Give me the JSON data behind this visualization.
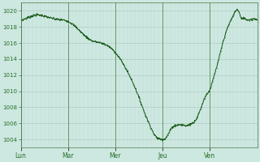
{
  "background_color": "#cce8e0",
  "plot_bg_color": "#cce8e0",
  "line_color": "#1a5c1a",
  "grid_color_h": "#b0ccc4",
  "grid_color_v": "#c0d8d0",
  "tick_label_color": "#2a6e2a",
  "ylim": [
    1003.0,
    1021.0
  ],
  "yticks": [
    1004,
    1006,
    1008,
    1010,
    1012,
    1014,
    1016,
    1018,
    1020
  ],
  "day_labels": [
    "Lun",
    "Mar",
    "Mer",
    "Jeu",
    "Ven"
  ],
  "day_positions": [
    0,
    24,
    48,
    72,
    96
  ],
  "xlim": [
    0,
    120
  ],
  "figsize": [
    3.2,
    2.0
  ],
  "dpi": 100,
  "control_points": [
    [
      0,
      1018.8
    ],
    [
      2,
      1019.0
    ],
    [
      5,
      1019.3
    ],
    [
      8,
      1019.5
    ],
    [
      11,
      1019.4
    ],
    [
      14,
      1019.2
    ],
    [
      17,
      1019.0
    ],
    [
      20,
      1018.9
    ],
    [
      24,
      1018.7
    ],
    [
      27,
      1018.2
    ],
    [
      30,
      1017.5
    ],
    [
      33,
      1016.8
    ],
    [
      36,
      1016.3
    ],
    [
      39,
      1016.1
    ],
    [
      42,
      1015.9
    ],
    [
      45,
      1015.5
    ],
    [
      48,
      1014.8
    ],
    [
      51,
      1013.8
    ],
    [
      54,
      1012.5
    ],
    [
      57,
      1011.0
    ],
    [
      60,
      1009.2
    ],
    [
      63,
      1007.2
    ],
    [
      66,
      1005.5
    ],
    [
      68,
      1004.5
    ],
    [
      70,
      1004.1
    ],
    [
      72,
      1004.0
    ],
    [
      74,
      1004.3
    ],
    [
      76,
      1005.2
    ],
    [
      78,
      1005.7
    ],
    [
      80,
      1005.8
    ],
    [
      82,
      1005.8
    ],
    [
      84,
      1005.7
    ],
    [
      86,
      1005.9
    ],
    [
      88,
      1006.2
    ],
    [
      90,
      1007.0
    ],
    [
      92,
      1008.3
    ],
    [
      94,
      1009.5
    ],
    [
      96,
      1010.2
    ],
    [
      98,
      1011.8
    ],
    [
      100,
      1013.5
    ],
    [
      102,
      1015.5
    ],
    [
      104,
      1017.2
    ],
    [
      106,
      1018.5
    ],
    [
      108,
      1019.5
    ],
    [
      109,
      1020.0
    ],
    [
      110,
      1020.1
    ],
    [
      111,
      1019.7
    ],
    [
      112,
      1019.0
    ],
    [
      113,
      1019.1
    ],
    [
      114,
      1019.0
    ],
    [
      116,
      1018.9
    ],
    [
      118,
      1019.0
    ],
    [
      120,
      1018.9
    ]
  ]
}
